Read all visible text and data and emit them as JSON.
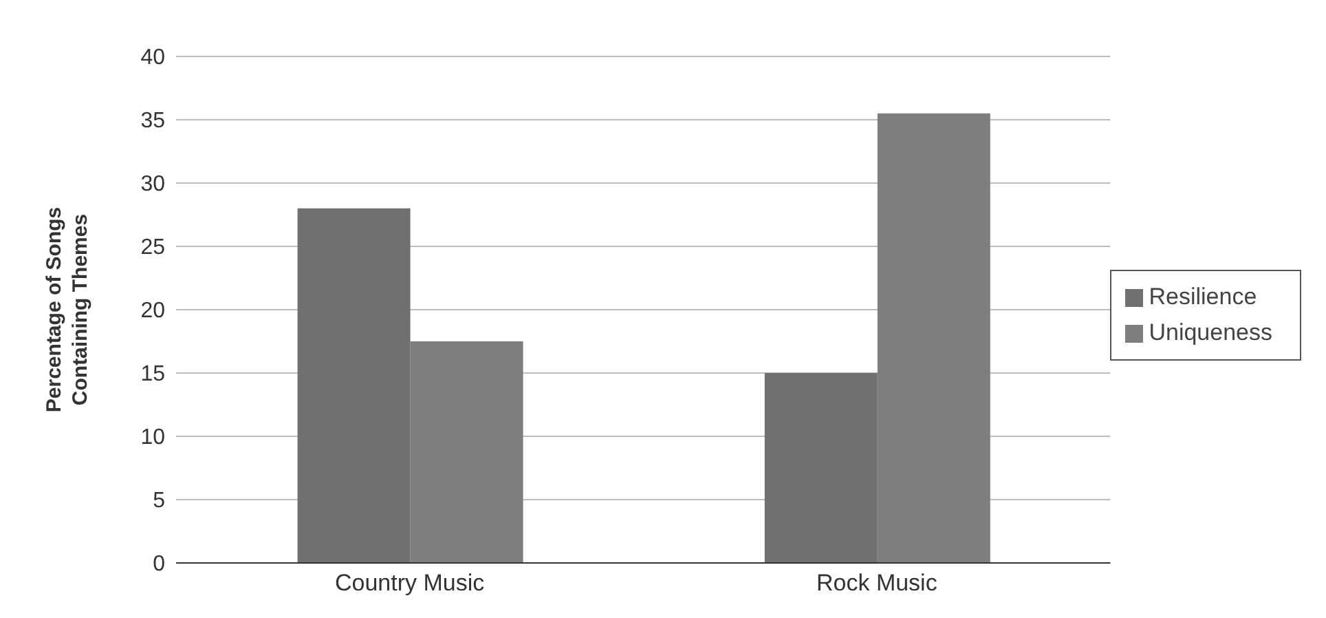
{
  "chart_data": {
    "type": "bar",
    "ylabel": "Percentage of Songs Containing Themes",
    "categories": [
      "Country Music",
      "Rock Music"
    ],
    "series": [
      {
        "name": "Resilience",
        "color": "#707070",
        "values": [
          28,
          15
        ]
      },
      {
        "name": "Uniqueness",
        "color": "#7e7e7e",
        "values": [
          17.5,
          35.5
        ]
      }
    ],
    "ylim": [
      0,
      40
    ],
    "yticks": [
      0,
      5,
      10,
      15,
      20,
      25,
      30,
      35,
      40
    ],
    "grid": "y",
    "legend": "right"
  }
}
